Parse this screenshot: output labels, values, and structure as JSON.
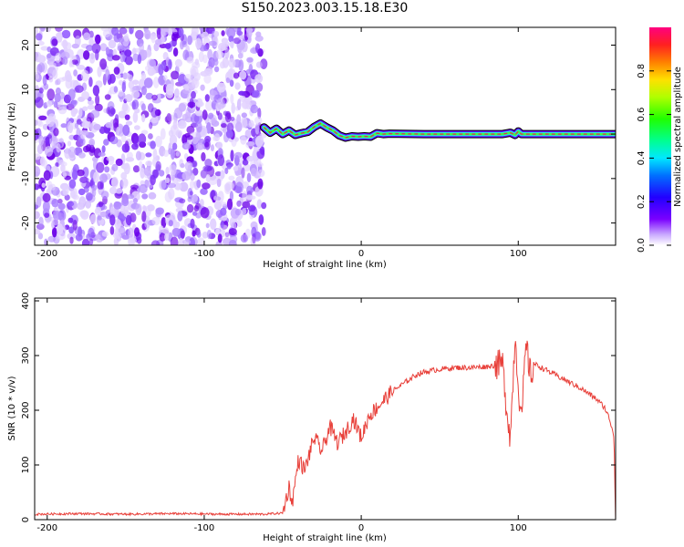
{
  "title": "S150.2023.003.15.18.E30",
  "colors": {
    "snr_line": "#e8403a",
    "band_outer": "#6a00ff",
    "band_mid": "#22e0ff",
    "band_core": "#e02a5a",
    "scatter_purple": "#7a1cf0",
    "frame": "#000000"
  },
  "chart_data": [
    {
      "type": "heatmap",
      "xlabel": "Height of straight line (km)",
      "ylabel": "Frequency (Hz)",
      "xlim": [
        -208,
        162
      ],
      "ylim": [
        -25,
        24
      ],
      "xticks": [
        -200,
        -100,
        0,
        100
      ],
      "xtick_labels": [
        "-200",
        "-100",
        "0",
        "100"
      ],
      "yticks": [
        -20,
        -10,
        0,
        10,
        20
      ],
      "ytick_labels": [
        "-20",
        "-10",
        "0",
        "10",
        "20"
      ],
      "colorbar": {
        "label": "Normalized spectral amplitude",
        "range": [
          0,
          1
        ],
        "ticks": [
          0.0,
          0.2,
          0.4,
          0.6,
          0.8
        ],
        "tick_labels": [
          "0.0",
          "0.2",
          "0.4",
          "0.6",
          "0.8"
        ],
        "colormap": "hsv-like rainbow"
      },
      "noise_region_x": [
        -208,
        -62
      ],
      "signal_track": {
        "x": [
          -62,
          -58,
          -54,
          -50,
          -46,
          -42,
          -38,
          -34,
          -30,
          -26,
          -22,
          -18,
          -14,
          -10,
          -6,
          -2,
          2,
          6,
          10,
          14,
          18,
          40,
          80,
          90,
          95,
          98,
          100,
          102,
          120,
          162
        ],
        "freq": [
          1.5,
          0.3,
          1.2,
          0.0,
          0.8,
          -0.2,
          0.2,
          0.5,
          1.6,
          2.4,
          1.5,
          0.8,
          -0.3,
          -0.8,
          -0.5,
          -0.6,
          -0.5,
          -0.6,
          0.2,
          0.0,
          0.1,
          0.0,
          0.0,
          0.0,
          0.3,
          -0.2,
          0.6,
          0.0,
          0.0,
          0.0
        ]
      }
    },
    {
      "type": "line",
      "xlabel": "Height of straight line (km)",
      "ylabel": "SNR (10 * v/v)",
      "xlim": [
        -208,
        162
      ],
      "ylim": [
        0,
        405
      ],
      "xticks": [
        -200,
        -100,
        0,
        100
      ],
      "xtick_labels": [
        "-200",
        "-100",
        "0",
        "100"
      ],
      "yticks": [
        0,
        100,
        200,
        300,
        400
      ],
      "ytick_labels": [
        "0",
        "100",
        "200",
        "300",
        "400"
      ],
      "series": [
        {
          "x": [
            -208,
            -180,
            -150,
            -120,
            -90,
            -62,
            -50,
            -46,
            -44,
            -40,
            -36,
            -30,
            -25,
            -20,
            -15,
            -10,
            -5,
            0,
            5,
            10,
            15,
            20,
            25,
            30,
            35,
            40,
            50,
            60,
            70,
            80,
            85,
            90,
            92,
            95,
            98,
            100,
            102,
            105,
            108,
            110,
            120,
            130,
            140,
            145,
            150,
            155,
            158,
            160,
            161,
            162
          ],
          "y": [
            10,
            11,
            10,
            11,
            10,
            10,
            12,
            60,
            30,
            110,
            90,
            150,
            125,
            170,
            140,
            160,
            185,
            150,
            190,
            205,
            220,
            235,
            245,
            255,
            265,
            270,
            275,
            278,
            278,
            280,
            282,
            285,
            220,
            150,
            340,
            250,
            180,
            320,
            260,
            285,
            270,
            255,
            240,
            230,
            220,
            205,
            185,
            165,
            150,
            0
          ]
        }
      ]
    }
  ]
}
